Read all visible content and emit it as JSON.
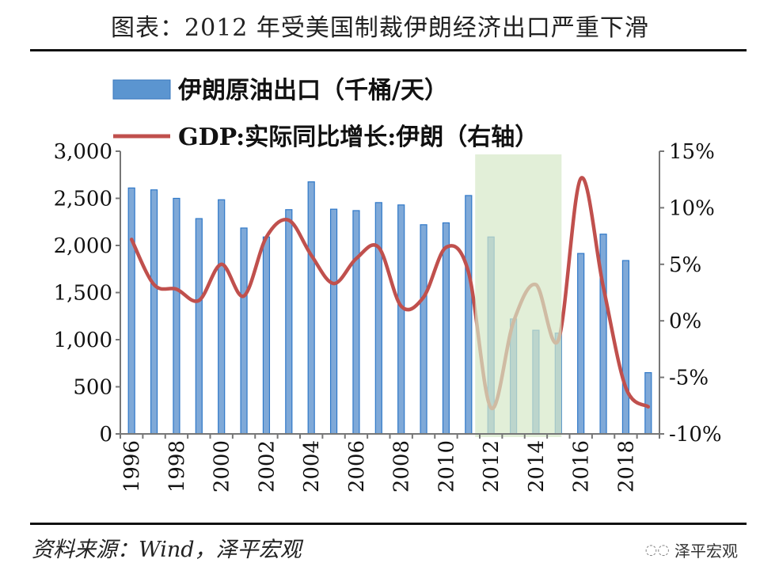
{
  "header": {
    "title": "图表：2012 年受美国制裁伊朗经济出口严重下滑"
  },
  "footer": {
    "source": "资料来源：Wind，泽平宏观",
    "watermark": "泽平宏观"
  },
  "chart_data": {
    "type": "bar+line",
    "title": "图表：2012 年受美国制裁伊朗经济出口严重下滑",
    "categories": [
      "1996",
      "1997",
      "1998",
      "1999",
      "2000",
      "2001",
      "2002",
      "2003",
      "2004",
      "2005",
      "2006",
      "2007",
      "2008",
      "2009",
      "2010",
      "2011",
      "2012",
      "2013",
      "2014",
      "2015",
      "2016",
      "2017",
      "2018",
      "2019"
    ],
    "x_tick_labels": [
      "1996",
      "1998",
      "2000",
      "2002",
      "2004",
      "2006",
      "2008",
      "2010",
      "2012",
      "2014",
      "2016",
      "2018"
    ],
    "series": [
      {
        "name": "伊朗原油出口（千桶/天）",
        "type": "bar",
        "axis": "left",
        "color": "#4F8BCB",
        "values": [
          2610,
          2590,
          2500,
          2285,
          2485,
          2185,
          2090,
          2380,
          2675,
          2385,
          2370,
          2455,
          2430,
          2220,
          2240,
          2530,
          2090,
          1220,
          1100,
          1070,
          1915,
          2120,
          1840,
          650
        ]
      },
      {
        "name": "GDP:实际同比增长:伊朗（右轴）",
        "type": "line",
        "axis": "right",
        "color": "#C0504D",
        "values": [
          7.2,
          3.2,
          2.8,
          1.8,
          5.0,
          2.2,
          7.4,
          8.9,
          5.8,
          3.3,
          5.5,
          6.5,
          1.3,
          2.1,
          6.5,
          4.3,
          -7.7,
          -0.1,
          3.2,
          -1.7,
          12.6,
          3.0,
          -5.9,
          -7.6
        ]
      }
    ],
    "y_left": {
      "range": [
        0,
        3000
      ],
      "ticks": [
        "0",
        "500",
        "1,000",
        "1,500",
        "2,000",
        "2,500",
        "3,000"
      ]
    },
    "y_right": {
      "range": [
        -10,
        15
      ],
      "ticks": [
        "-10%",
        "-5%",
        "0%",
        "5%",
        "10%",
        "15%"
      ]
    },
    "highlight": {
      "from": "2012",
      "to": "2015",
      "color": "#D6E8C8"
    },
    "legend": "top-left",
    "grid": false
  }
}
